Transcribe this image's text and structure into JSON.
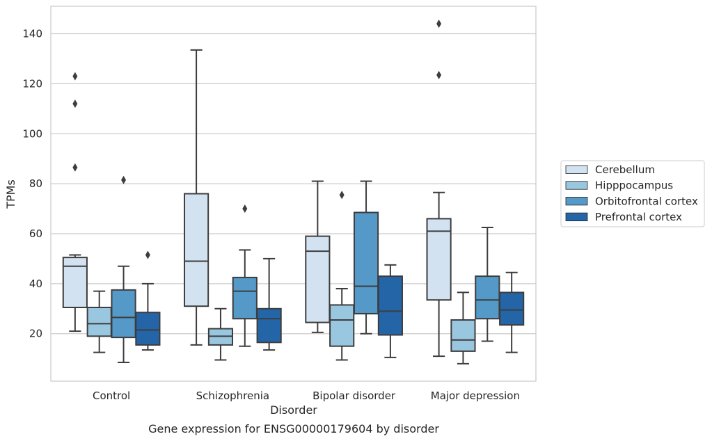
{
  "chart_data": {
    "type": "box",
    "categories": [
      "Control",
      "Schizophrenia",
      "Bipolar disorder",
      "Major depression"
    ],
    "xlabel": "Disorder",
    "ylabel": "TPMs",
    "caption": "Gene expression for ENSG00000179604 by disorder",
    "ylim": [
      1,
      151
    ],
    "yticks": [
      20,
      40,
      60,
      80,
      100,
      120,
      140
    ],
    "grid": true,
    "legend_position": "right",
    "series": [
      {
        "name": "Cerebellum",
        "color": "#d3e2f1",
        "boxes": [
          {
            "min": 21,
            "q1": 30.5,
            "median": 47,
            "q3": 50.5,
            "max": 51.5,
            "outliers": [
              86.5,
              112,
              123
            ]
          },
          {
            "min": 15.5,
            "q1": 31,
            "median": 49,
            "q3": 76,
            "max": 133.5,
            "outliers": []
          },
          {
            "min": 20.5,
            "q1": 24.5,
            "median": 53,
            "q3": 59,
            "max": 81,
            "outliers": []
          },
          {
            "min": 11,
            "q1": 33.5,
            "median": 61,
            "q3": 66,
            "max": 76.5,
            "outliers": [
              123.5,
              144
            ]
          }
        ]
      },
      {
        "name": "Hipppocampus",
        "color": "#9ac7e0",
        "boxes": [
          {
            "min": 12.5,
            "q1": 19,
            "median": 24,
            "q3": 30.5,
            "max": 37,
            "outliers": []
          },
          {
            "min": 9.5,
            "q1": 15.5,
            "median": 19,
            "q3": 22,
            "max": 30,
            "outliers": []
          },
          {
            "min": 9.5,
            "q1": 15,
            "median": 25.5,
            "q3": 31.5,
            "max": 38,
            "outliers": [
              75.5
            ]
          },
          {
            "min": 8,
            "q1": 13,
            "median": 17.5,
            "q3": 25.5,
            "max": 36.5,
            "outliers": []
          }
        ]
      },
      {
        "name": "Orbitofrontal cortex",
        "color": "#5499c8",
        "boxes": [
          {
            "min": 8.5,
            "q1": 18.5,
            "median": 26.5,
            "q3": 37.5,
            "max": 47,
            "outliers": [
              81.5
            ]
          },
          {
            "min": 15,
            "q1": 26,
            "median": 37,
            "q3": 42.5,
            "max": 53.5,
            "outliers": [
              70
            ]
          },
          {
            "min": 20,
            "q1": 28,
            "median": 39,
            "q3": 68.5,
            "max": 81,
            "outliers": []
          },
          {
            "min": 17,
            "q1": 26,
            "median": 33.5,
            "q3": 43,
            "max": 62.5,
            "outliers": []
          }
        ]
      },
      {
        "name": "Prefrontal cortex",
        "color": "#2465a8",
        "boxes": [
          {
            "min": 13.5,
            "q1": 15.5,
            "median": 21.5,
            "q3": 28.5,
            "max": 40,
            "outliers": [
              51.5
            ]
          },
          {
            "min": 13.5,
            "q1": 16.5,
            "median": 26,
            "q3": 30,
            "max": 50,
            "outliers": []
          },
          {
            "min": 10.5,
            "q1": 19.5,
            "median": 29,
            "q3": 43,
            "max": 47.5,
            "outliers": []
          },
          {
            "min": 12.5,
            "q1": 23.5,
            "median": 29.5,
            "q3": 36.5,
            "max": 44.5,
            "outliers": []
          }
        ]
      }
    ]
  }
}
